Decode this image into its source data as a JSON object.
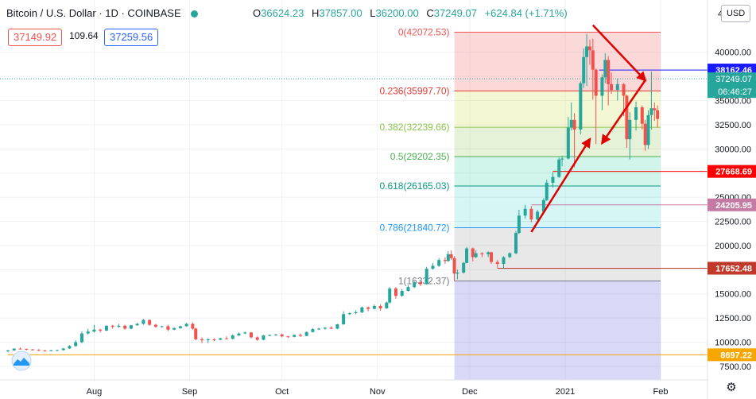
{
  "header": {
    "symbol": "Bitcoin / U.S. Dollar · 1D · COINBASE",
    "open_label": "O",
    "open": "36624.23",
    "high_label": "H",
    "high": "37857.00",
    "low_label": "L",
    "low": "36200.00",
    "close_label": "C",
    "close": "37249.07",
    "change": "+624.84 (+1.71%)",
    "bid": "37149.92",
    "spread": "109.64",
    "ask": "37259.56"
  },
  "currency_button": "USD",
  "colors": {
    "up": "#26a69a",
    "down": "#ef5350",
    "arrow": "#e00000",
    "axis_bg": "#ffffff",
    "current_price_bg": "#26a69a",
    "blue_line": "#2962ff",
    "orange_line": "#f7a600"
  },
  "chart_data": {
    "type": "candlestick",
    "y_axis": {
      "min": 7000,
      "max": 44500,
      "ticks": [
        7500,
        10000,
        12500,
        15000,
        17500,
        20000,
        22500,
        25000,
        27500,
        30000,
        32500,
        35000,
        37500,
        40000
      ],
      "tick_labels": [
        "7500.00",
        "10000.00",
        "12500.00",
        "15000.00",
        "17500.00",
        "20000.00",
        "22500.00",
        "25000.00",
        "27500.00",
        "30000.00",
        "32500.00",
        "35000.00",
        "37500.00",
        "40000.00"
      ]
    },
    "x_axis": {
      "labels": [
        "Aug",
        "Sep",
        "Oct",
        "Nov",
        "Dec",
        "2021",
        "Feb"
      ],
      "label_dates": [
        "2020-08-01",
        "2020-09-01",
        "2020-10-01",
        "2020-11-01",
        "2020-12-01",
        "2021-01-01",
        "2021-02-01"
      ],
      "start": "2020-07-04",
      "end": "2021-02-09"
    },
    "fibonacci": {
      "start_date": "2020-11-26",
      "end_date": "2021-02-01",
      "levels": [
        {
          "label": "0(42072.53)",
          "value": 42072.53,
          "color": "#ef5350",
          "fill": "rgba(239,83,80,0.22)"
        },
        {
          "label": "0.236(35997.70)",
          "value": 35997.7,
          "color": "#e53935",
          "fill": "rgba(205,220,57,0.22)"
        },
        {
          "label": "0.382(32239.66)",
          "value": 32239.66,
          "color": "#8bc34a",
          "fill": "rgba(139,195,74,0.22)"
        },
        {
          "label": "0.5(29202.35)",
          "value": 29202.35,
          "color": "#4caf50",
          "fill": "rgba(0,200,140,0.18)"
        },
        {
          "label": "0.618(26165.03)",
          "value": 26165.03,
          "color": "#089981",
          "fill": "rgba(0,190,190,0.16)"
        },
        {
          "label": "0.786(21840.72)",
          "value": 21840.72,
          "color": "#2196f3",
          "fill": "rgba(150,150,150,0.22)"
        },
        {
          "label": "1(16332.37)",
          "value": 16332.37,
          "color": "#787b86",
          "fill": "rgba(80,80,220,0.22)"
        }
      ]
    },
    "price_lines": [
      {
        "value": 38162.46,
        "label": "38162.46",
        "color": "#1a1aff",
        "style": "solid",
        "from_date": "2021-01-12"
      },
      {
        "value": 27668.69,
        "label": "27668.69",
        "color": "#ff0000",
        "style": "solid",
        "from_date": "2020-12-28"
      },
      {
        "value": 24205.95,
        "label": "24205.95",
        "color": "#c57aa4",
        "style": "solid",
        "from_date": "2020-12-21"
      },
      {
        "value": 17652.48,
        "label": "17652.48",
        "color": "#c0392b",
        "style": "solid",
        "from_date": "2020-12-10"
      },
      {
        "value": 8697.22,
        "label": "8697.22",
        "color": "#f7a600",
        "style": "solid",
        "from_date": "2020-07-04"
      }
    ],
    "current_price": {
      "value": 37249.07,
      "label": "37249.07",
      "countdown": "06:46:27"
    },
    "top_axis_partial": "4",
    "trend_arrows": [
      {
        "from": [
          "2020-12-21",
          21400
        ],
        "to": [
          "2021-01-09",
          31000
        ]
      },
      {
        "from": [
          "2021-01-10",
          42800
        ],
        "to": [
          "2021-01-27",
          37100
        ]
      },
      {
        "from": [
          "2021-01-27",
          37100
        ],
        "to": [
          "2021-01-13",
          30600
        ]
      }
    ],
    "candles": [
      [
        "2020-07-04",
        9090,
        9200,
        8950,
        9150
      ],
      [
        "2020-07-06",
        9150,
        9380,
        9100,
        9330
      ],
      [
        "2020-07-08",
        9330,
        9450,
        9250,
        9300
      ],
      [
        "2020-07-10",
        9300,
        9350,
        9150,
        9250
      ],
      [
        "2020-07-12",
        9250,
        9300,
        9150,
        9200
      ],
      [
        "2020-07-14",
        9200,
        9280,
        9080,
        9150
      ],
      [
        "2020-07-16",
        9150,
        9200,
        9020,
        9100
      ],
      [
        "2020-07-18",
        9100,
        9200,
        9050,
        9160
      ],
      [
        "2020-07-20",
        9160,
        9220,
        9100,
        9180
      ],
      [
        "2020-07-22",
        9180,
        9400,
        9150,
        9350
      ],
      [
        "2020-07-24",
        9350,
        9700,
        9300,
        9600
      ],
      [
        "2020-07-26",
        9600,
        10200,
        9550,
        10000
      ],
      [
        "2020-07-28",
        10000,
        11100,
        9900,
        10900
      ],
      [
        "2020-07-30",
        10900,
        11400,
        10800,
        11100
      ],
      [
        "2020-08-01",
        11100,
        11800,
        11000,
        11300
      ],
      [
        "2020-08-03",
        11300,
        11400,
        11000,
        11200
      ],
      [
        "2020-08-05",
        11200,
        11750,
        11150,
        11700
      ],
      [
        "2020-08-07",
        11700,
        11800,
        11400,
        11600
      ],
      [
        "2020-08-09",
        11600,
        11900,
        11500,
        11700
      ],
      [
        "2020-08-11",
        11700,
        11800,
        11300,
        11400
      ],
      [
        "2020-08-13",
        11400,
        11800,
        11350,
        11750
      ],
      [
        "2020-08-15",
        11750,
        12000,
        11700,
        11900
      ],
      [
        "2020-08-17",
        11900,
        12400,
        11800,
        12300
      ],
      [
        "2020-08-19",
        12300,
        12350,
        11700,
        11800
      ],
      [
        "2020-08-21",
        11800,
        11900,
        11500,
        11600
      ],
      [
        "2020-08-23",
        11600,
        11700,
        11500,
        11650
      ],
      [
        "2020-08-25",
        11650,
        11800,
        11150,
        11300
      ],
      [
        "2020-08-27",
        11300,
        11550,
        11250,
        11450
      ],
      [
        "2020-08-29",
        11450,
        11700,
        11400,
        11650
      ],
      [
        "2020-08-31",
        11650,
        12000,
        11600,
        11900
      ],
      [
        "2020-09-02",
        11900,
        12050,
        11300,
        11400
      ],
      [
        "2020-09-03",
        11400,
        11500,
        10200,
        10300
      ],
      [
        "2020-09-05",
        10300,
        10500,
        9900,
        10200
      ],
      [
        "2020-09-07",
        10200,
        10400,
        9900,
        10300
      ],
      [
        "2020-09-09",
        10300,
        10400,
        10100,
        10250
      ],
      [
        "2020-09-11",
        10250,
        10450,
        10200,
        10400
      ],
      [
        "2020-09-13",
        10400,
        10600,
        10300,
        10350
      ],
      [
        "2020-09-15",
        10350,
        10800,
        10300,
        10700
      ],
      [
        "2020-09-17",
        10700,
        11000,
        10650,
        10900
      ],
      [
        "2020-09-19",
        10900,
        11100,
        10850,
        11000
      ],
      [
        "2020-09-21",
        11000,
        11050,
        10400,
        10500
      ],
      [
        "2020-09-23",
        10500,
        10600,
        10150,
        10250
      ],
      [
        "2020-09-25",
        10250,
        10750,
        10200,
        10700
      ],
      [
        "2020-09-27",
        10700,
        10800,
        10600,
        10750
      ],
      [
        "2020-09-29",
        10750,
        10850,
        10650,
        10800
      ],
      [
        "2020-10-01",
        10800,
        10900,
        10500,
        10600
      ],
      [
        "2020-10-03",
        10600,
        10650,
        10450,
        10550
      ],
      [
        "2020-10-05",
        10550,
        10800,
        10500,
        10750
      ],
      [
        "2020-10-07",
        10750,
        10900,
        10550,
        10650
      ],
      [
        "2020-10-09",
        10650,
        11100,
        10600,
        11050
      ],
      [
        "2020-10-11",
        11050,
        11450,
        11000,
        11350
      ],
      [
        "2020-10-13",
        11350,
        11500,
        11250,
        11400
      ],
      [
        "2020-10-15",
        11400,
        11550,
        11300,
        11500
      ],
      [
        "2020-10-17",
        11500,
        11650,
        11350,
        11400
      ],
      [
        "2020-10-19",
        11400,
        11900,
        11350,
        11850
      ],
      [
        "2020-10-21",
        11850,
        13200,
        11800,
        12900
      ],
      [
        "2020-10-23",
        12900,
        13100,
        12800,
        13000
      ],
      [
        "2020-10-25",
        13000,
        13300,
        12900,
        13100
      ],
      [
        "2020-10-27",
        13100,
        13700,
        13000,
        13600
      ],
      [
        "2020-10-29",
        13600,
        13700,
        13200,
        13450
      ],
      [
        "2020-10-31",
        13450,
        13900,
        13400,
        13750
      ],
      [
        "2020-11-02",
        13750,
        13900,
        13250,
        13500
      ],
      [
        "2020-11-04",
        13500,
        14200,
        13450,
        14100
      ],
      [
        "2020-11-05",
        14100,
        15700,
        14000,
        15550
      ],
      [
        "2020-11-07",
        15550,
        15700,
        14500,
        14800
      ],
      [
        "2020-11-09",
        14800,
        15500,
        14700,
        15300
      ],
      [
        "2020-11-11",
        15300,
        15900,
        15250,
        15700
      ],
      [
        "2020-11-13",
        15700,
        16300,
        15600,
        16200
      ],
      [
        "2020-11-15",
        16200,
        16300,
        15800,
        16000
      ],
      [
        "2020-11-17",
        16000,
        17800,
        15950,
        17600
      ],
      [
        "2020-11-19",
        17600,
        18200,
        17500,
        17900
      ],
      [
        "2020-11-21",
        17900,
        18700,
        17800,
        18500
      ],
      [
        "2020-11-23",
        18500,
        18800,
        18100,
        18400
      ],
      [
        "2020-11-24",
        18400,
        19400,
        18300,
        19100
      ],
      [
        "2020-11-25",
        19100,
        19500,
        18500,
        18700
      ],
      [
        "2020-11-26",
        18700,
        18900,
        16300,
        17100
      ],
      [
        "2020-11-27",
        17100,
        17500,
        16500,
        17200
      ],
      [
        "2020-11-29",
        17200,
        18300,
        17100,
        18200
      ],
      [
        "2020-11-30",
        18200,
        19850,
        18150,
        19700
      ],
      [
        "2020-12-02",
        19700,
        19800,
        18350,
        18800
      ],
      [
        "2020-12-03",
        18800,
        19500,
        18700,
        19200
      ],
      [
        "2020-12-05",
        19200,
        19300,
        18800,
        19100
      ],
      [
        "2020-12-07",
        19100,
        19400,
        18800,
        19300
      ],
      [
        "2020-12-08",
        19300,
        19350,
        18100,
        18300
      ],
      [
        "2020-12-10",
        18300,
        18500,
        17700,
        18100
      ],
      [
        "2020-12-12",
        18100,
        18900,
        17600,
        18800
      ],
      [
        "2020-12-14",
        18800,
        19300,
        18700,
        19200
      ],
      [
        "2020-12-16",
        19200,
        21500,
        19100,
        21300
      ],
      [
        "2020-12-17",
        21300,
        23700,
        21200,
        23100
      ],
      [
        "2020-12-19",
        23100,
        24200,
        22800,
        23800
      ],
      [
        "2020-12-21",
        23800,
        24100,
        22400,
        22700
      ],
      [
        "2020-12-23",
        22700,
        23700,
        22600,
        23500
      ],
      [
        "2020-12-25",
        23500,
        24900,
        23400,
        24700
      ],
      [
        "2020-12-26",
        24700,
        26800,
        24600,
        26500
      ],
      [
        "2020-12-28",
        26500,
        27600,
        26000,
        27100
      ],
      [
        "2020-12-30",
        27100,
        29100,
        27000,
        28900
      ],
      [
        "2020-12-31",
        28900,
        29300,
        28200,
        29000
      ],
      [
        "2021-01-02",
        29000,
        33300,
        28900,
        32200
      ],
      [
        "2021-01-03",
        32200,
        34800,
        31900,
        33000
      ],
      [
        "2021-01-04",
        33000,
        33700,
        28100,
        32000
      ],
      [
        "2021-01-06",
        32000,
        37000,
        31500,
        36800
      ],
      [
        "2021-01-07",
        36800,
        40400,
        36300,
        39500
      ],
      [
        "2021-01-08",
        39500,
        41900,
        36500,
        40600
      ],
      [
        "2021-01-09",
        40600,
        41300,
        38700,
        40200
      ],
      [
        "2021-01-10",
        40200,
        41400,
        35100,
        38200
      ],
      [
        "2021-01-11",
        38200,
        38300,
        30500,
        35500
      ],
      [
        "2021-01-13",
        35500,
        37700,
        34000,
        37400
      ],
      [
        "2021-01-14",
        37400,
        39900,
        36800,
        39200
      ],
      [
        "2021-01-15",
        39200,
        39600,
        34500,
        36700
      ],
      [
        "2021-01-16",
        36700,
        37900,
        35700,
        36100
      ],
      [
        "2021-01-18",
        36100,
        37300,
        35000,
        36700
      ],
      [
        "2021-01-20",
        36700,
        36800,
        33400,
        35500
      ],
      [
        "2021-01-21",
        35500,
        35600,
        30100,
        31000
      ],
      [
        "2021-01-22",
        31000,
        33800,
        28900,
        33000
      ],
      [
        "2021-01-24",
        33000,
        34900,
        31900,
        34300
      ],
      [
        "2021-01-26",
        34300,
        34500,
        32000,
        32600
      ],
      [
        "2021-01-27",
        32600,
        33000,
        29800,
        30400
      ],
      [
        "2021-01-28",
        30400,
        34000,
        30000,
        33500
      ],
      [
        "2021-01-29",
        33500,
        38000,
        32000,
        34200
      ],
      [
        "2021-01-30",
        34200,
        34800,
        32900,
        34000
      ],
      [
        "2021-01-31",
        34000,
        34500,
        32200,
        33100
      ]
    ]
  }
}
